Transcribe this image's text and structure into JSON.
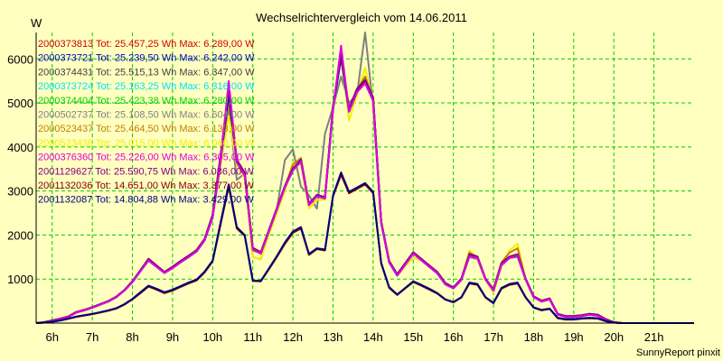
{
  "chart_data": {
    "type": "line",
    "title": "Wechselrichtervergleich vom 14.06.2011",
    "ylabel": "W",
    "xlabel": "",
    "footer": "SunnyReport pinxit",
    "xlim": [
      5.6,
      22.0
    ],
    "ylim": [
      0,
      6600
    ],
    "yticks": [
      1000,
      2000,
      3000,
      4000,
      5000,
      6000
    ],
    "xticks": [
      6,
      7,
      8,
      9,
      10,
      11,
      12,
      13,
      14,
      15,
      16,
      17,
      18,
      19,
      20,
      21
    ],
    "xtick_labels": [
      "6h",
      "7h",
      "8h",
      "9h",
      "10h",
      "11h",
      "12h",
      "13h",
      "14h",
      "15h",
      "16h",
      "17h",
      "18h",
      "19h",
      "20h",
      "21h"
    ],
    "grid": true,
    "legend_position": "top-left",
    "x": [
      5.6,
      5.8,
      6.0,
      6.2,
      6.4,
      6.6,
      6.8,
      7.0,
      7.2,
      7.4,
      7.6,
      7.8,
      8.0,
      8.2,
      8.4,
      8.6,
      8.8,
      9.0,
      9.2,
      9.4,
      9.6,
      9.8,
      10.0,
      10.2,
      10.4,
      10.6,
      10.8,
      11.0,
      11.2,
      11.4,
      11.6,
      11.8,
      12.0,
      12.2,
      12.4,
      12.6,
      12.8,
      13.0,
      13.2,
      13.4,
      13.6,
      13.8,
      14.0,
      14.2,
      14.4,
      14.6,
      14.8,
      15.0,
      15.2,
      15.4,
      15.6,
      15.8,
      16.0,
      16.2,
      16.4,
      16.6,
      16.8,
      17.0,
      17.2,
      17.4,
      17.6,
      17.8,
      18.0,
      18.2,
      18.4,
      18.6,
      18.8,
      19.0,
      19.2,
      19.4,
      19.6,
      19.8,
      20.0,
      20.2,
      20.4,
      20.6,
      20.8,
      21.0,
      21.2,
      21.4,
      21.6,
      21.8,
      22.0
    ],
    "series": [
      {
        "name": "2000373813 Tot: 25.457,25 Wh Max: 6.289,00 W",
        "color": "#d00000",
        "values": [
          0,
          20,
          60,
          100,
          150,
          250,
          300,
          360,
          430,
          500,
          600,
          750,
          950,
          1200,
          1450,
          1300,
          1150,
          1270,
          1400,
          1520,
          1650,
          1900,
          2450,
          3800,
          5300,
          3700,
          3400,
          1700,
          1600,
          2100,
          2600,
          3100,
          3500,
          3700,
          2700,
          2900,
          2850,
          4900,
          6100,
          4850,
          5300,
          5500,
          5100,
          2300,
          1400,
          1100,
          1350,
          1600,
          1450,
          1300,
          1150,
          900,
          800,
          1000,
          1550,
          1500,
          1000,
          750,
          1350,
          1500,
          1550,
          1000,
          600,
          500,
          550,
          200,
          150,
          150,
          170,
          200,
          180,
          80,
          20,
          0,
          0,
          0,
          0,
          0,
          0,
          0,
          0,
          0,
          0
        ]
      },
      {
        "name": "2000373721 Tot: 25.239,50 Wh Max: 6.242,00 W",
        "color": "#0000c0",
        "values": [
          0,
          15,
          50,
          90,
          140,
          240,
          290,
          350,
          420,
          490,
          590,
          740,
          930,
          1180,
          1420,
          1280,
          1140,
          1250,
          1380,
          1500,
          1630,
          1880,
          2400,
          3700,
          5200,
          3650,
          3350,
          1680,
          1580,
          2080,
          2580,
          3080,
          3470,
          3670,
          2680,
          2880,
          2830,
          4850,
          6050,
          4800,
          5250,
          5450,
          5050,
          2280,
          1380,
          1080,
          1330,
          1580,
          1430,
          1280,
          1130,
          880,
          790,
          980,
          1520,
          1480,
          990,
          740,
          1330,
          1480,
          1530,
          990,
          590,
          490,
          540,
          190,
          140,
          140,
          160,
          190,
          170,
          70,
          15,
          0,
          0,
          0,
          0,
          0,
          0,
          0,
          0,
          0,
          0
        ]
      },
      {
        "name": "2000374431 Tot: 25.515,13 Wh Max: 6.347,00 W",
        "color": "#404040",
        "values": [
          0,
          20,
          60,
          100,
          150,
          250,
          300,
          360,
          430,
          500,
          600,
          750,
          950,
          1200,
          1460,
          1310,
          1160,
          1280,
          1410,
          1530,
          1660,
          1910,
          2460,
          3820,
          5320,
          3710,
          3410,
          1710,
          1610,
          2110,
          2610,
          3110,
          3510,
          3710,
          2710,
          2910,
          2860,
          4920,
          6120,
          4870,
          5320,
          5520,
          5120,
          2310,
          1410,
          1110,
          1360,
          1610,
          1460,
          1310,
          1160,
          910,
          810,
          1010,
          1560,
          1510,
          1010,
          760,
          1360,
          1510,
          1560,
          1010,
          610,
          510,
          560,
          210,
          160,
          160,
          180,
          210,
          190,
          90,
          20,
          0,
          0,
          0,
          0,
          0,
          0,
          0,
          0,
          0,
          0
        ]
      },
      {
        "name": "2000373724 Tot: 25.163,25 Wh Max: 6.316,00 W",
        "color": "#00e0ff",
        "values": [
          0,
          15,
          50,
          90,
          140,
          240,
          290,
          350,
          420,
          490,
          590,
          740,
          930,
          1180,
          1420,
          1280,
          1140,
          1250,
          1380,
          1500,
          1630,
          1880,
          2400,
          3700,
          5200,
          3650,
          3350,
          1680,
          1580,
          2080,
          2580,
          3080,
          3470,
          3670,
          2680,
          2880,
          2830,
          4850,
          6050,
          4800,
          5250,
          5450,
          5050,
          2280,
          1380,
          1080,
          1330,
          1580,
          1430,
          1280,
          1130,
          880,
          790,
          980,
          1520,
          1480,
          990,
          740,
          1330,
          1480,
          1530,
          990,
          590,
          490,
          540,
          190,
          140,
          140,
          160,
          190,
          170,
          70,
          15,
          0,
          0,
          0,
          0,
          0,
          0,
          0,
          0,
          0,
          0
        ]
      },
      {
        "name": "2000374404 Tot: 25.423,38 Wh Max: 6.280,00 W",
        "color": "#00d000",
        "values": [
          0,
          20,
          60,
          100,
          150,
          250,
          300,
          360,
          430,
          500,
          600,
          750,
          950,
          1200,
          1450,
          1300,
          1150,
          1270,
          1400,
          1520,
          1650,
          1900,
          2450,
          3780,
          5250,
          3700,
          3400,
          1700,
          1600,
          2100,
          2600,
          3100,
          3500,
          3700,
          2700,
          2900,
          2850,
          4900,
          6050,
          4850,
          5300,
          5500,
          5100,
          2300,
          1400,
          1100,
          1350,
          1600,
          1450,
          1300,
          1150,
          900,
          800,
          1000,
          1550,
          1500,
          1000,
          750,
          1350,
          1500,
          1550,
          1000,
          600,
          500,
          550,
          200,
          150,
          150,
          170,
          200,
          180,
          80,
          20,
          0,
          0,
          0,
          0,
          0,
          0,
          0,
          0,
          0,
          0
        ]
      },
      {
        "name": "2000502737 Tot: 25.108,50 Wh Max: 6.604,00 W",
        "color": "#808080",
        "values": [
          0,
          15,
          50,
          90,
          140,
          240,
          290,
          350,
          420,
          490,
          590,
          740,
          930,
          1180,
          1420,
          1280,
          1140,
          1250,
          1380,
          1500,
          1630,
          1880,
          2400,
          3700,
          4900,
          3250,
          3400,
          1500,
          1450,
          2080,
          2580,
          3700,
          3950,
          3100,
          2900,
          2600,
          4300,
          4900,
          5600,
          5000,
          5200,
          6600,
          4900,
          2250,
          1380,
          1080,
          1300,
          1480,
          1430,
          1280,
          1130,
          880,
          790,
          980,
          1500,
          1450,
          990,
          700,
          1300,
          1480,
          1500,
          990,
          590,
          490,
          540,
          190,
          140,
          140,
          160,
          190,
          170,
          70,
          15,
          0,
          0,
          0,
          0,
          0,
          0,
          0,
          0,
          0,
          0
        ]
      },
      {
        "name": "2000523437 Tot: 25.464,50 Wh Max: 6.133,00 W",
        "color": "#c08000",
        "values": [
          0,
          20,
          60,
          100,
          150,
          250,
          300,
          360,
          430,
          500,
          600,
          750,
          950,
          1200,
          1450,
          1300,
          1150,
          1270,
          1400,
          1520,
          1650,
          1900,
          2450,
          3780,
          5000,
          3700,
          3400,
          1650,
          1580,
          2100,
          2600,
          3100,
          3600,
          3750,
          2700,
          2900,
          2850,
          4950,
          6000,
          4850,
          5300,
          5600,
          5100,
          2300,
          1400,
          1100,
          1350,
          1600,
          1450,
          1300,
          1150,
          900,
          800,
          1000,
          1600,
          1500,
          1000,
          780,
          1380,
          1600,
          1700,
          1000,
          600,
          500,
          550,
          200,
          150,
          150,
          170,
          200,
          180,
          80,
          20,
          0,
          0,
          0,
          0,
          0,
          0,
          0,
          0,
          0,
          0
        ]
      },
      {
        "name": "2000523438 Tot: 25.015,00 Wh Max: 6.060,00 W",
        "color": "#f0f000",
        "values": [
          0,
          15,
          50,
          90,
          140,
          240,
          290,
          350,
          420,
          490,
          590,
          740,
          930,
          1180,
          1420,
          1280,
          1140,
          1250,
          1380,
          1500,
          1630,
          1880,
          2400,
          3600,
          4700,
          3600,
          3300,
          1500,
          1450,
          2000,
          2500,
          3000,
          3650,
          3600,
          2600,
          2800,
          2800,
          4800,
          6060,
          4600,
          5200,
          5800,
          4950,
          2250,
          1380,
          1080,
          1300,
          1480,
          1430,
          1280,
          1130,
          880,
          790,
          980,
          1650,
          1450,
          990,
          700,
          1300,
          1650,
          1800,
          990,
          590,
          490,
          540,
          190,
          140,
          140,
          160,
          190,
          170,
          70,
          15,
          0,
          0,
          0,
          0,
          0,
          0,
          0,
          0,
          0,
          0
        ]
      },
      {
        "name": "2000376360 Tot: 25.226,00 Wh Max: 6.305,00 W",
        "color": "#e000e0",
        "values": [
          0,
          15,
          50,
          90,
          140,
          240,
          290,
          350,
          420,
          490,
          590,
          740,
          930,
          1180,
          1420,
          1280,
          1140,
          1250,
          1380,
          1500,
          1630,
          1880,
          2400,
          3700,
          5500,
          3650,
          3350,
          1680,
          1580,
          2080,
          2580,
          3080,
          3470,
          3670,
          2680,
          2880,
          2830,
          4850,
          6300,
          4800,
          5250,
          5450,
          5050,
          2280,
          1380,
          1080,
          1330,
          1580,
          1430,
          1280,
          1130,
          880,
          790,
          980,
          1520,
          1480,
          990,
          740,
          1330,
          1480,
          1530,
          990,
          590,
          490,
          540,
          190,
          140,
          140,
          160,
          190,
          170,
          70,
          15,
          0,
          0,
          0,
          0,
          0,
          0,
          0,
          0,
          0,
          0
        ]
      },
      {
        "name": "2001129627 Tot: 25.590,75 Wh Max: 6.086,00 W",
        "color": "#800080",
        "values": [
          0,
          20,
          60,
          100,
          150,
          250,
          300,
          360,
          430,
          500,
          600,
          750,
          950,
          1200,
          1460,
          1310,
          1160,
          1280,
          1410,
          1530,
          1660,
          1910,
          2460,
          3820,
          5320,
          3710,
          3410,
          1710,
          1610,
          2110,
          2610,
          3110,
          3510,
          3710,
          2710,
          2910,
          2860,
          4920,
          6080,
          4870,
          5320,
          5520,
          5120,
          2310,
          1410,
          1110,
          1360,
          1610,
          1460,
          1310,
          1160,
          910,
          810,
          1010,
          1560,
          1510,
          1010,
          760,
          1360,
          1510,
          1560,
          1010,
          610,
          510,
          560,
          210,
          160,
          160,
          180,
          210,
          190,
          90,
          20,
          0,
          0,
          0,
          0,
          0,
          0,
          0,
          0,
          0,
          0
        ]
      },
      {
        "name": "2001132036 Tot: 14.651,00 Wh Max: 3.377,00 W",
        "color": "#800000",
        "values": [
          0,
          10,
          30,
          60,
          100,
          140,
          170,
          200,
          240,
          280,
          330,
          420,
          540,
          680,
          830,
          760,
          680,
          740,
          820,
          900,
          970,
          1150,
          1400,
          2250,
          3100,
          2150,
          1980,
          960,
          950,
          1220,
          1500,
          1800,
          2050,
          2150,
          1550,
          1680,
          1650,
          2880,
          3370,
          2950,
          3050,
          3150,
          2950,
          1350,
          800,
          640,
          790,
          930,
          850,
          760,
          670,
          530,
          470,
          580,
          900,
          870,
          580,
          450,
          780,
          870,
          900,
          580,
          350,
          290,
          320,
          110,
          80,
          80,
          100,
          110,
          100,
          40,
          10,
          0,
          0,
          0,
          0,
          0,
          0,
          0,
          0,
          0,
          0
        ]
      },
      {
        "name": "2001132087 Tot: 14.804,88 Wh Max: 3.429,00 W",
        "color": "#000080",
        "values": [
          0,
          10,
          30,
          60,
          100,
          150,
          180,
          210,
          250,
          290,
          340,
          430,
          550,
          700,
          850,
          780,
          700,
          760,
          840,
          920,
          990,
          1170,
          1420,
          2300,
          3150,
          2180,
          2000,
          970,
          960,
          1240,
          1520,
          1830,
          2080,
          2180,
          1570,
          1700,
          1670,
          2900,
          3420,
          2980,
          3080,
          3180,
          2980,
          1370,
          820,
          650,
          800,
          950,
          870,
          780,
          680,
          540,
          480,
          590,
          920,
          890,
          590,
          460,
          800,
          890,
          920,
          590,
          360,
          300,
          330,
          120,
          90,
          90,
          110,
          120,
          110,
          50,
          10,
          0,
          0,
          0,
          0,
          0,
          0,
          0,
          0,
          0,
          0
        ]
      }
    ]
  }
}
